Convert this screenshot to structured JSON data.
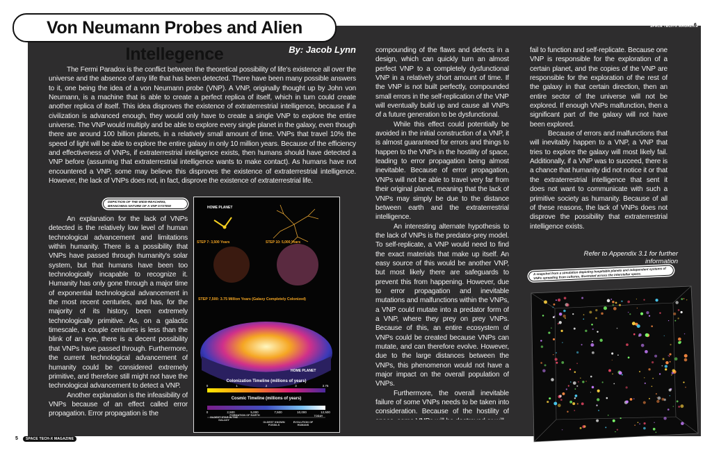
{
  "header": {
    "title": "Von Neumann Probes and Alien Intellegence",
    "magazine_right": "SPACE TECH-X MAGAZINE",
    "page_right": "6",
    "magazine_left": "SPACE TECH-X MAGAZINE",
    "page_left": "5"
  },
  "byline": "By: Jacob Lynn",
  "intro": "The Fermi Paradox is the conflict between the theoretical possibility of life's existence all over the universe and the absence of any life that has been detected. There have been many possible answers to it, one being the idea of a von Neumann probe (VNP). A VNP, originally thought up by John von Neumann, is a machine that is able to create a perfect replica of itself, which in turn could create another replica of itself. This idea disproves the existence of extraterrestrial intelligence, because if a civilization is advanced enough, they would only have to create a single VNP to explore the entire universe. The VNP would multiply and be able to explore every single planet in the galaxy, even though there are around 100 billion planets, in a relatively small amount of time. VNPs that travel 10% the speed of light will be able to explore the entire galaxy in only 10 million years. Because of the efficiency and effectiveness of VNPs, if extraterrestrial intelligence exists, then humans should have detected a VNP before (assuming that extraterrestrial intelligence wants to make contact). As humans have not encountered a VNP, some may believe this disproves the existence of extraterrestrial intelligence. However, the lack of VNPs does not, in fact, disprove the existence of extraterrestrial life.",
  "columns": [
    {
      "paragraphs": [
        "An explanation for the lack of VNPs detected is the relatively low level of human technological advancement and limitations within humanity. There is a possibility that VNPs have passed through humanity's solar system, but that humans have been too technologically incapable to recognize it. Humanity has only gone through a major time of exponential technological advancement in the most recent centuries, and has, for the majority of its history, been extremely technologically primitive. As, on a galactic timescale, a couple centuries is less than the blink of an eye, there is a decent possibility that VNPs have passed through. Furthermore, the current technological advancement of humanity could be considered extremely primitive, and therefore still might not have the technological advancement to detect a VNP.",
        "Another explanation is the infeasibility of VNPs because of an effect called error propagation. Error propagation is the"
      ]
    },
    {
      "paragraphs": [
        "compounding of the flaws and defects in a design, which can quickly turn an almost perfect VNP to a completely dysfunctional VNP in a relatively short amount of time. If the VNP is not built perfectly, compounded small errors in the self-replication of the VNP will eventually build up and cause all VNPs of a future generation to be dysfunctional.",
        "While this effect could potentially be avoided in the initial construction of a VNP, it is almost guaranteed for errors and things to happen to the VNPs in the hostility of space, leading to error propagation being almost inevitable. Because of error propagation, VNPs will not be able to travel very far from their original planet, meaning that the lack of VNPs may simply be due to the distance between earth and the extraterrestrial intelligence.",
        "An interesting alternate hypothesis to the lack of VNPs is the predator-prey model. To self-replicate, a VNP would need to find the exact materials that make up itself. An easy source of this would be another VNP, but most likely there are safeguards to prevent this from happening. However, due to error propagation and inevitable mutations and malfunctions within the VNPs, a VNP could mutate into a predator form of a VNP, where they prey on prey VNPs. Because of this, an entire ecosystem of VNPs could be created because VNPs can mutate, and can therefore evolve. However, due to the large distances between the VNPs, this phenomenon would not have a major impact on the overall population of VNPs.",
        "Furthermore, the overall inevitable failure of some VNPs needs to be taken into consideration. Because of the hostility of space, some VNPs will be destroyed or will"
      ]
    },
    {
      "paragraphs": [
        "fail to function and self-replicate. Because one VNP is responsible for the exploration of a certain planet, and the copies of the VNP are responsible for the exploration of the rest of the galaxy in that certain direction, then an entire sector of the universe will not be explored. If enough VNPs malfunction, then a significant part of the galaxy will not have been explored.",
        "Because of errors and malfunctions that will inevitably happen to a VNP, a VNP that tries to explore the galaxy will most likely fail. Additionally, if a VNP was to succeed, there is a chance that humanity did not notice it or that the extraterrestrial intelligence that sent it does not want to communicate with such a primitive society as humanity. Because of all of these reasons, the lack of VNPs does not disprove the possibility that extraterrestrial intelligence exists."
      ]
    }
  ],
  "appendix_note": "Refer to Appendix 3.1 for further information",
  "figure_left": {
    "caption": "DEPICTION OF THE WIDE-REACHING, BRANCHING NATURE OF A VNP SYSTEM",
    "home_planet_top": "HOME PLANET",
    "step_a": "STEP 7: 3,500 Years",
    "step_b": "STEP 10: 5,000 Years",
    "step_c": "STEP 7,500: 3.75 Million Years (Galaxy Completely Colonized)",
    "home_planet_galaxy": "HOME PLANET",
    "colonization_title": "Colonization Timeline (millions of years)",
    "colonization_ticks": [
      "0",
      "1",
      "2",
      "3",
      "3.75"
    ],
    "cosmic_title": "Cosmic Timeline (millions of years)",
    "cosmic_ticks": [
      "0",
      "2,500",
      "5,000",
      "7,500",
      "10,000",
      "12,500"
    ],
    "events": [
      "OLDEST STAR IN THE GALAXY",
      "FORMATION OF EARTH",
      "OLDEST KNOWN FOSSILS",
      "TODAY",
      "EVOLUTION OF HUMANS"
    ]
  },
  "figure_right": {
    "caption": "A snapshot from a simulation depicting hospitable planets and independent systems of VNPs spreading from cultures, illustrated across the interstellar space."
  }
}
